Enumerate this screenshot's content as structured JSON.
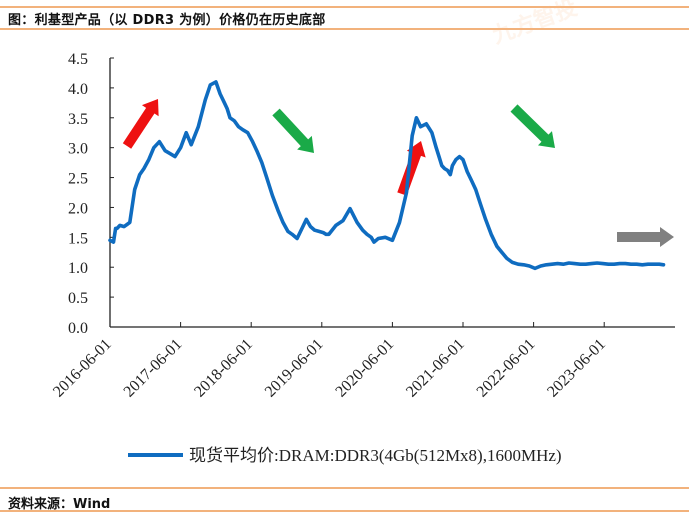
{
  "header": {
    "title": "图：利基型产品（以 DDR3 为例）价格仍在历史底部"
  },
  "footer": {
    "source": "资料来源：Wind"
  },
  "watermark": "九方智投",
  "colors": {
    "line": "#0f6cc0",
    "rule": "#f2b27c",
    "arrow_up": "#ee1111",
    "arrow_down": "#1aaa48",
    "arrow_flat": "#808080"
  },
  "chart_data": {
    "type": "line",
    "title": "利基型产品（以 DDR3 为例）价格仍在历史底部",
    "xlabel": "",
    "ylabel": "",
    "ylim": [
      0,
      4.5
    ],
    "yticks": [
      "0.0",
      "0.5",
      "1.0",
      "1.5",
      "2.0",
      "2.5",
      "3.0",
      "3.5",
      "4.0",
      "4.5"
    ],
    "xlim": [
      "2016-06-01",
      "2024-05-01"
    ],
    "xticks": [
      "2016-06-01",
      "2017-06-01",
      "2018-06-01",
      "2019-06-01",
      "2020-06-01",
      "2021-06-01",
      "2022-06-01",
      "2023-06-01"
    ],
    "grid": false,
    "legend_position": "bottom",
    "series": [
      {
        "name": "现货平均价:DRAM:DDR3(4Gb(512Mx8),1600MHz)",
        "x_years_since_2016_06": [
          0.0,
          0.05,
          0.08,
          0.1,
          0.14,
          0.2,
          0.28,
          0.35,
          0.42,
          0.48,
          0.55,
          0.62,
          0.7,
          0.78,
          0.85,
          0.92,
          1.0,
          1.08,
          1.15,
          1.25,
          1.35,
          1.42,
          1.5,
          1.56,
          1.62,
          1.66,
          1.7,
          1.76,
          1.82,
          1.88,
          1.95,
          2.02,
          2.08,
          2.15,
          2.22,
          2.3,
          2.38,
          2.45,
          2.52,
          2.58,
          2.65,
          2.72,
          2.78,
          2.84,
          2.9,
          2.96,
          3.02,
          3.06,
          3.1,
          3.2,
          3.3,
          3.4,
          3.5,
          3.58,
          3.64,
          3.7,
          3.74,
          3.8,
          3.9,
          4.0,
          4.1,
          4.2,
          4.28,
          4.34,
          4.4,
          4.48,
          4.56,
          4.62,
          4.66,
          4.7,
          4.74,
          4.78,
          4.82,
          4.85,
          4.9,
          4.95,
          5.0,
          5.06,
          5.12,
          5.18,
          5.25,
          5.32,
          5.4,
          5.48,
          5.55,
          5.62,
          5.7,
          5.78,
          5.86,
          5.94,
          6.02,
          6.1,
          6.18,
          6.26,
          6.34,
          6.42,
          6.5,
          6.58,
          6.66,
          6.74,
          6.82,
          6.9,
          6.98,
          7.06,
          7.14,
          7.22,
          7.3,
          7.38,
          7.46,
          7.54,
          7.62,
          7.7,
          7.78,
          7.84
        ],
        "values": [
          1.45,
          1.42,
          1.65,
          1.65,
          1.7,
          1.68,
          1.75,
          2.3,
          2.55,
          2.65,
          2.8,
          3.0,
          3.1,
          2.95,
          2.9,
          2.85,
          3.0,
          3.25,
          3.05,
          3.35,
          3.8,
          4.05,
          4.1,
          3.9,
          3.75,
          3.65,
          3.5,
          3.45,
          3.35,
          3.3,
          3.25,
          3.1,
          2.95,
          2.75,
          2.5,
          2.2,
          1.95,
          1.75,
          1.6,
          1.55,
          1.48,
          1.65,
          1.8,
          1.68,
          1.62,
          1.6,
          1.58,
          1.55,
          1.55,
          1.7,
          1.78,
          1.98,
          1.75,
          1.62,
          1.55,
          1.5,
          1.42,
          1.48,
          1.5,
          1.45,
          1.75,
          2.25,
          3.2,
          3.5,
          3.35,
          3.4,
          3.25,
          3.0,
          2.85,
          2.7,
          2.65,
          2.62,
          2.55,
          2.7,
          2.8,
          2.85,
          2.8,
          2.6,
          2.45,
          2.3,
          2.05,
          1.8,
          1.55,
          1.35,
          1.25,
          1.15,
          1.08,
          1.05,
          1.04,
          1.02,
          0.98,
          1.02,
          1.04,
          1.05,
          1.06,
          1.05,
          1.07,
          1.06,
          1.05,
          1.05,
          1.06,
          1.07,
          1.06,
          1.05,
          1.05,
          1.06,
          1.06,
          1.05,
          1.05,
          1.04,
          1.05,
          1.05,
          1.05,
          1.04
        ]
      }
    ],
    "annotations": [
      {
        "type": "arrow",
        "direction": "up",
        "color": "red",
        "near": "2016-2017 rise"
      },
      {
        "type": "arrow",
        "direction": "down",
        "color": "green",
        "near": "2018-2019 decline"
      },
      {
        "type": "arrow",
        "direction": "up",
        "color": "red",
        "near": "2020-2021 rise"
      },
      {
        "type": "arrow",
        "direction": "down",
        "color": "green",
        "near": "2021-2023 decline"
      },
      {
        "type": "arrow",
        "direction": "flat",
        "color": "gray",
        "near": "2023-2024 bottom"
      }
    ]
  }
}
